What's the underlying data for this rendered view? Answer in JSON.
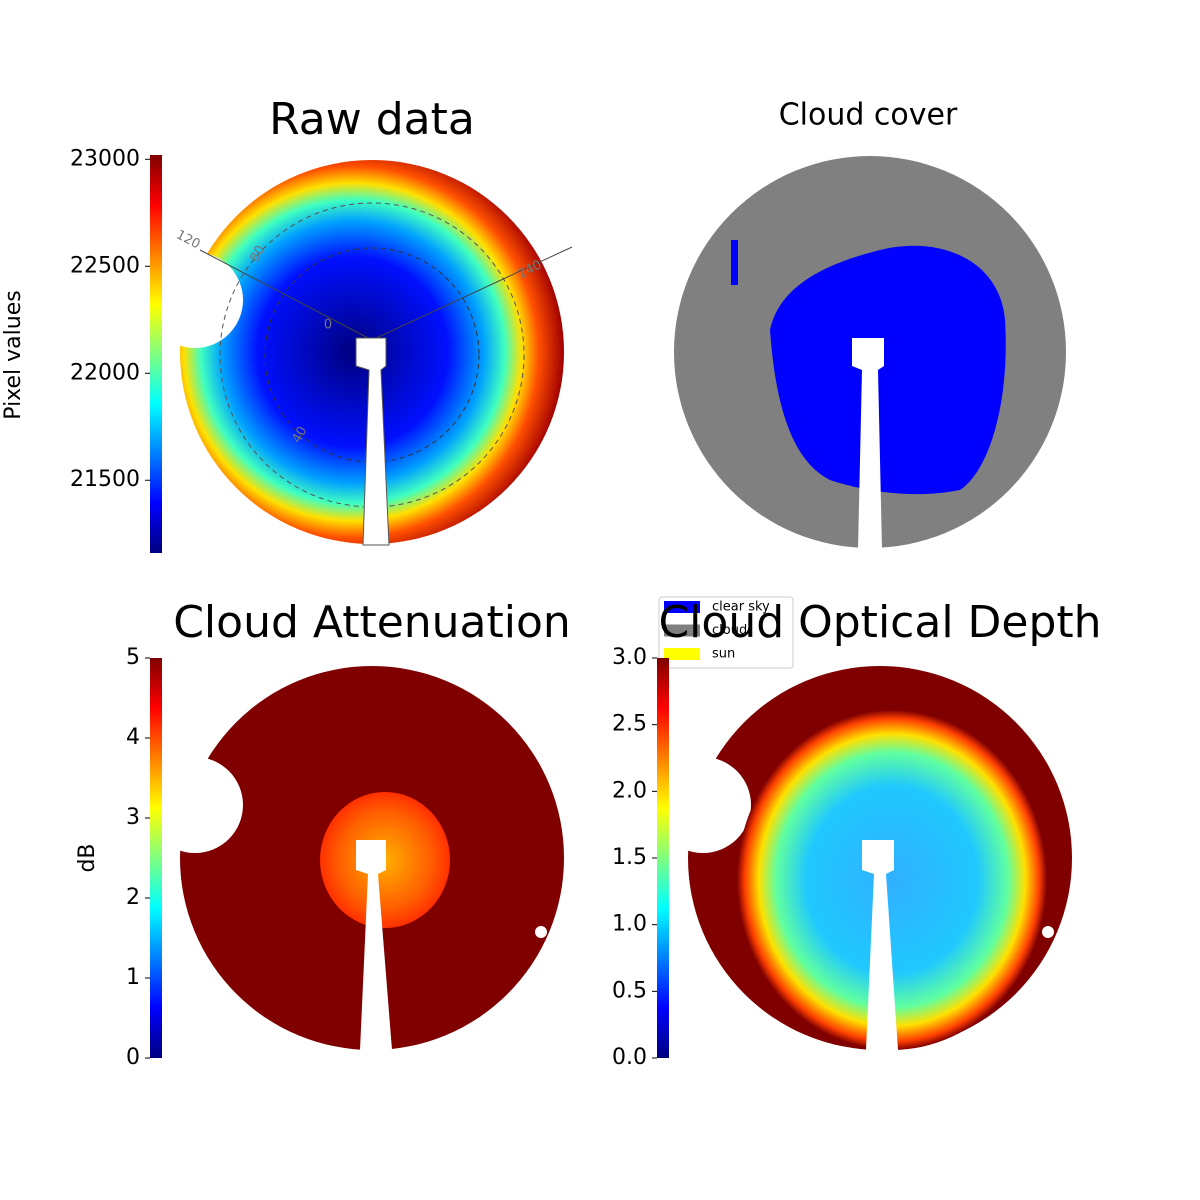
{
  "chart_data": [
    {
      "type": "image",
      "title": "Raw data",
      "colormap": "jet",
      "clabel": "Pixel values",
      "clim": [
        21160,
        23020
      ],
      "cticks": [
        21500,
        22000,
        22500,
        23000
      ],
      "annotations": [
        "120",
        "80",
        "240",
        "40",
        "0"
      ]
    },
    {
      "type": "categorical-image",
      "title": "Cloud cover",
      "legend": [
        {
          "name": "clear sky",
          "color": "#0000ff"
        },
        {
          "name": "cloud",
          "color": "#808080"
        },
        {
          "name": "sun",
          "color": "#ffff00"
        }
      ]
    },
    {
      "type": "image",
      "title": "Cloud Attenuation",
      "colormap": "jet",
      "clabel": "dB",
      "clim": [
        0,
        5
      ],
      "cticks": [
        0,
        1,
        2,
        3,
        4,
        5
      ]
    },
    {
      "type": "image",
      "title": "Cloud Optical Depth",
      "colormap": "jet",
      "clim": [
        0,
        3
      ],
      "cticks": [
        {
          "value": 0,
          "label": "0.0"
        },
        {
          "value": 0.5,
          "label": "0.5"
        },
        {
          "value": 1,
          "label": "1.0"
        },
        {
          "value": 1.5,
          "label": "1.5"
        },
        {
          "value": 2,
          "label": "2.0"
        },
        {
          "value": 2.5,
          "label": "2.5"
        },
        {
          "value": 3,
          "label": "3.0"
        }
      ]
    }
  ]
}
